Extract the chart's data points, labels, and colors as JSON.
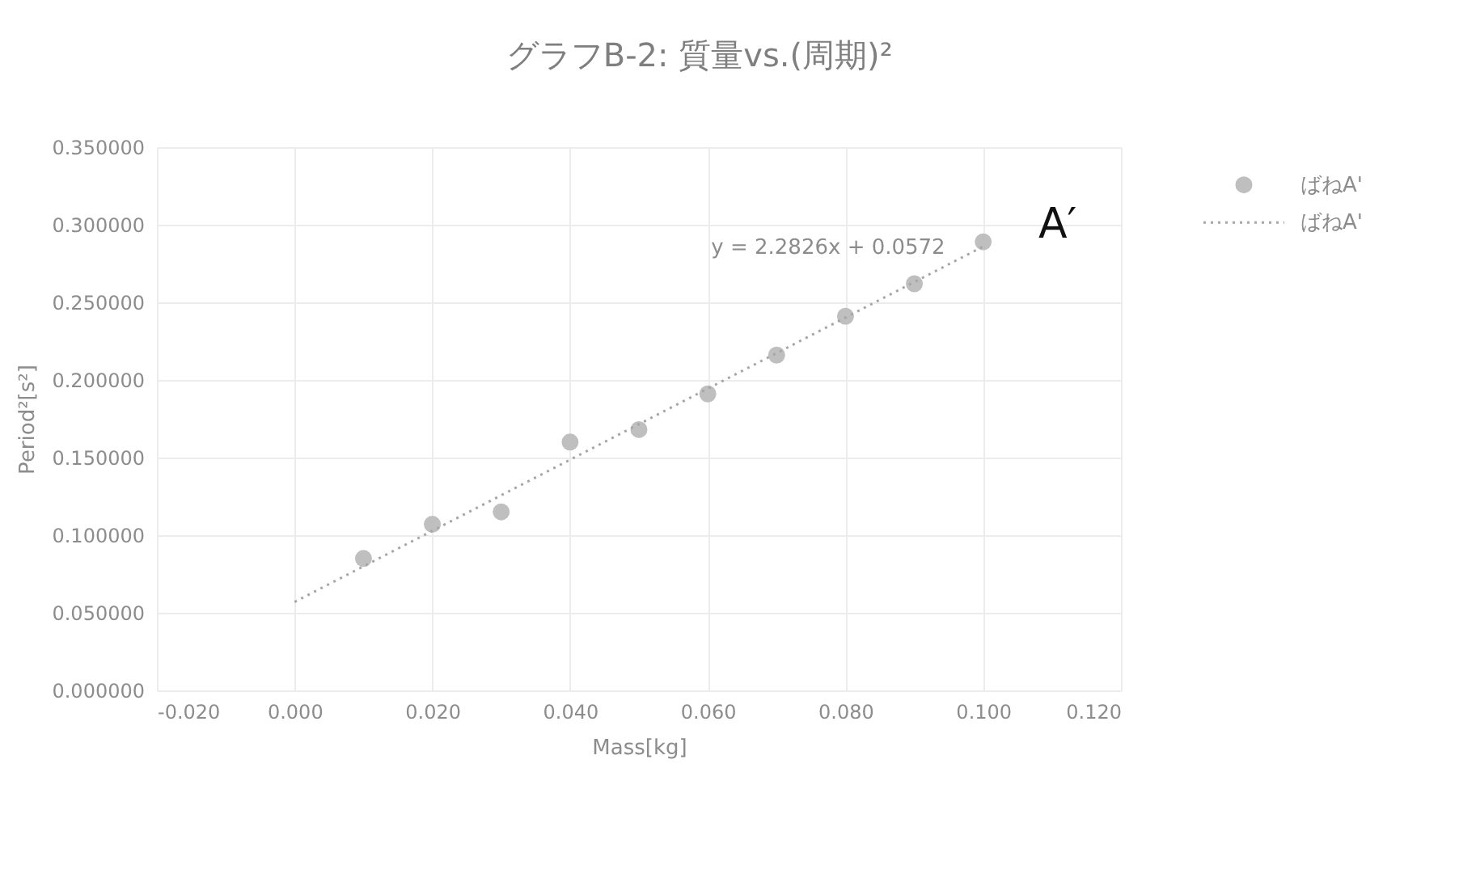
{
  "chart_data": {
    "type": "scatter",
    "title": "グラフB-2: 質量vs.(周期)²",
    "xlabel": "Mass[kg]",
    "ylabel": "Period²[s²]",
    "series": [
      {
        "name": "ばねA'",
        "color": "#bfbfbf",
        "marker": "circle",
        "x": [
          0.01,
          0.02,
          0.03,
          0.04,
          0.05,
          0.06,
          0.07,
          0.08,
          0.09,
          0.1
        ],
        "values": [
          0.085,
          0.107,
          0.115,
          0.16,
          0.168,
          0.191,
          0.216,
          0.241,
          0.262,
          0.289
        ]
      },
      {
        "name": "ばねA'",
        "type": "line",
        "color": "#a6a6a6",
        "line_style": "dotted",
        "marker": "none",
        "x": [
          0.0,
          0.1
        ],
        "values": [
          0.057,
          0.286
        ]
      }
    ],
    "xlim": [
      -0.02,
      0.12
    ],
    "xticks": [
      {
        "value": -0.02,
        "label": "-0.020"
      },
      {
        "value": 0.0,
        "label": "0.000"
      },
      {
        "value": 0.02,
        "label": "0.020"
      },
      {
        "value": 0.04,
        "label": "0.040"
      },
      {
        "value": 0.06,
        "label": "0.060"
      },
      {
        "value": 0.08,
        "label": "0.080"
      },
      {
        "value": 0.1,
        "label": "0.100"
      },
      {
        "value": 0.12,
        "label": "0.120"
      }
    ],
    "ylim": [
      0,
      0.35
    ],
    "yticks": [
      {
        "value": 0,
        "label": "0.000000"
      },
      {
        "value": 0.05,
        "label": "0.050000"
      },
      {
        "value": 0.1,
        "label": "0.100000"
      },
      {
        "value": 0.15,
        "label": "0.150000"
      },
      {
        "value": 0.2,
        "label": "0.200000"
      },
      {
        "value": 0.25,
        "label": "0.250000"
      },
      {
        "value": 0.3,
        "label": "0.300000"
      },
      {
        "value": 0.35,
        "label": "0.350000"
      }
    ],
    "grid": true,
    "legend": "right",
    "annotations": [
      "y = 2.2826x + 0.0572",
      "A′"
    ]
  }
}
